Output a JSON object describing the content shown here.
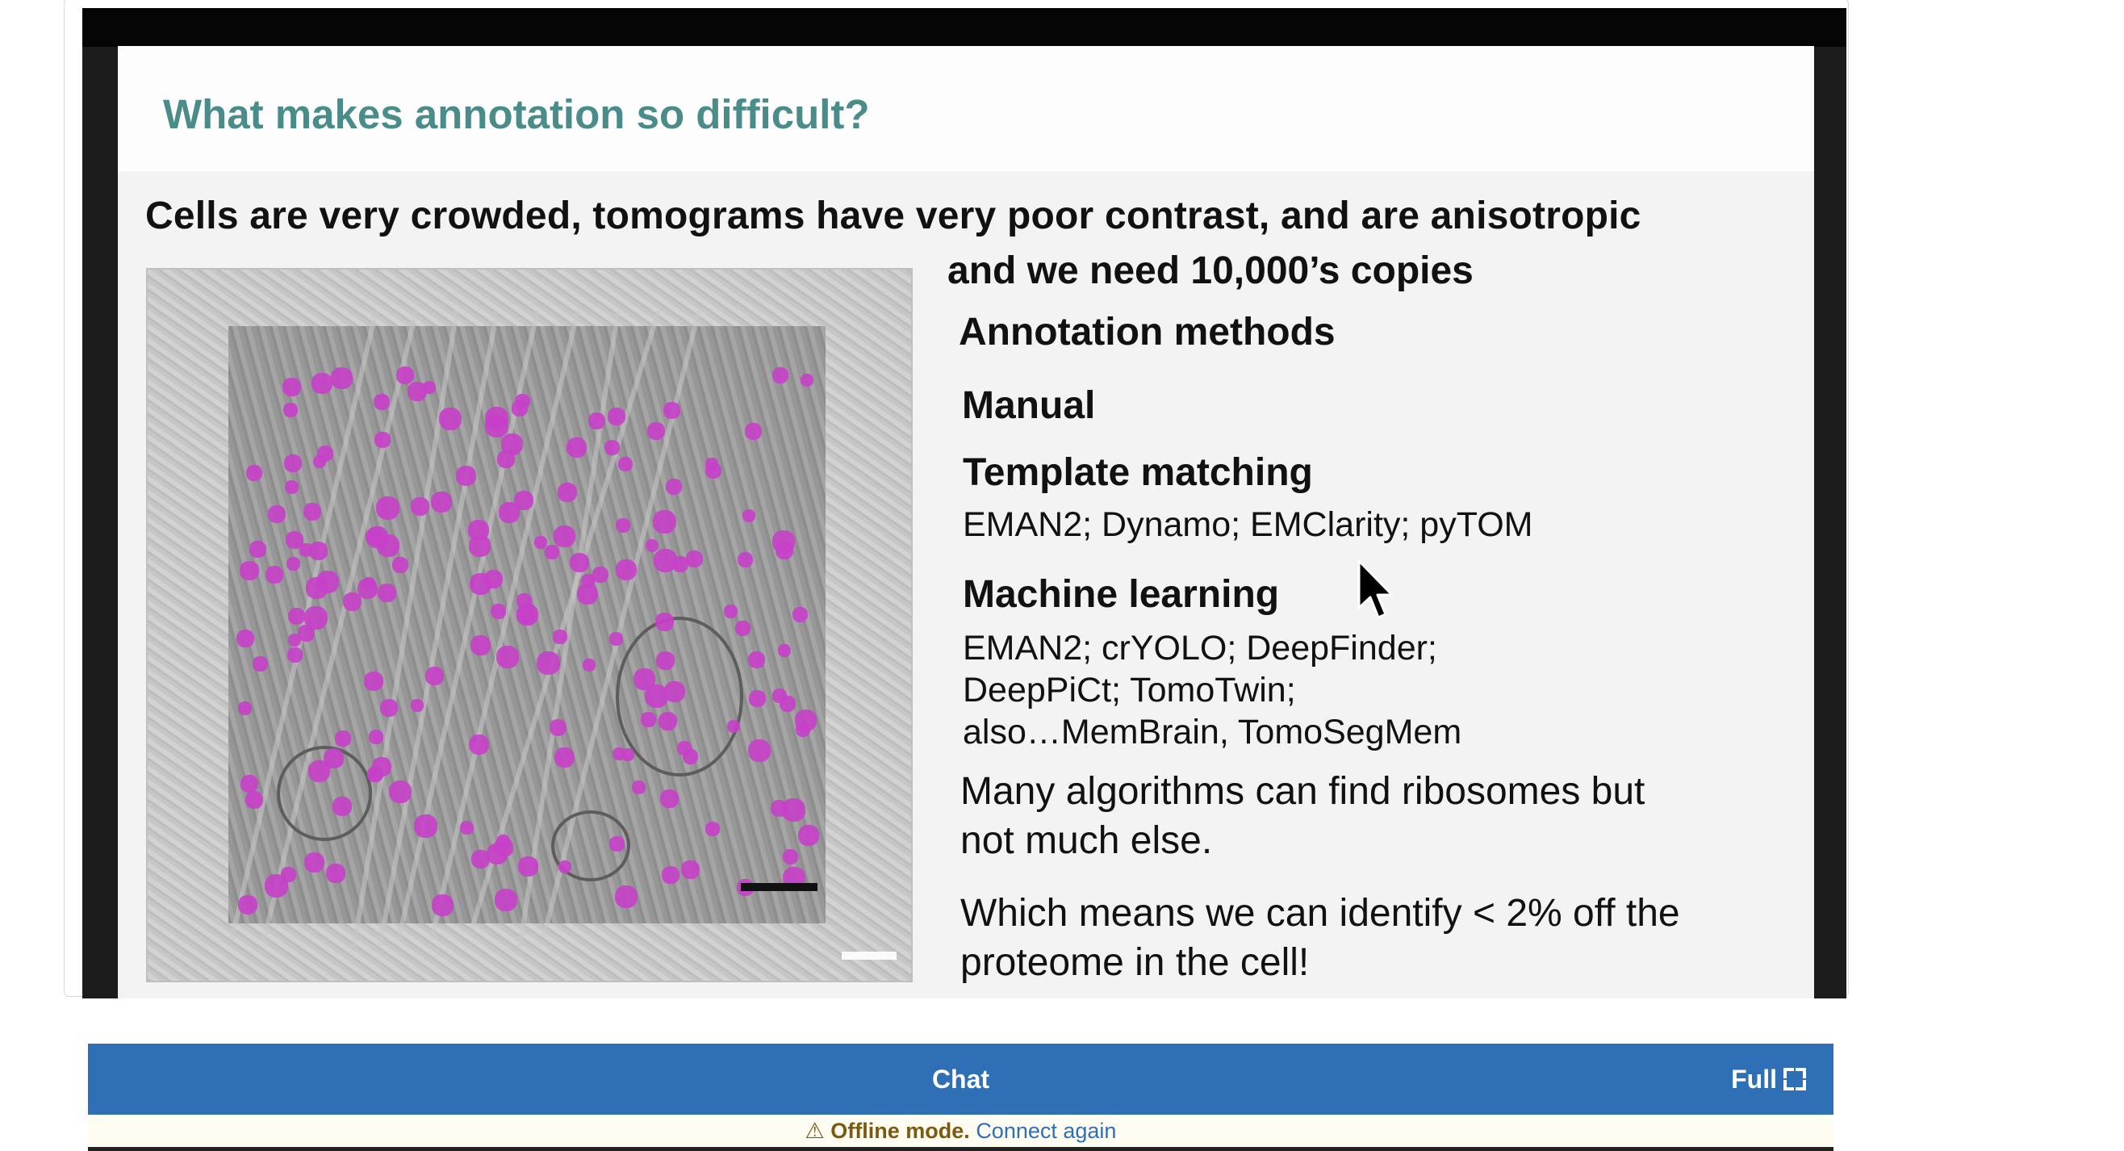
{
  "slide": {
    "title": "What makes annotation so difficult?",
    "subtitle_line1": "Cells are very crowded, tomograms have very poor contrast, and are anisotropic",
    "subtitle_line2": "and we need 10,000’s copies",
    "methods_heading": "Annotation methods",
    "manual": "Manual",
    "template_heading": "Template matching",
    "template_tools": "EMAN2; Dynamo; EMClarity; pyTOM",
    "ml_heading": "Machine learning",
    "ml_tools_1": "EMAN2; crYOLO; DeepFinder;",
    "ml_tools_2": "DeepPiCt; TomoTwin;",
    "ml_tools_3": "also…MemBrain, TomoSegMem",
    "note_1_line1": "Many algorithms can find ribosomes but",
    "note_1_line2": "not much else.",
    "note_2_line1": "Which means we can identify < 2% off the",
    "note_2_line2": "proteome in the cell!"
  },
  "chat": {
    "title": "Chat",
    "full_label": "Full",
    "offline_icon": "warning-icon",
    "offline_label": "Offline mode.",
    "reconnect_label": "Connect again"
  },
  "colors": {
    "title_teal": "#4a8c8a",
    "annotation_magenta": "#c63fc9",
    "chat_blue": "#2f6fb6"
  }
}
